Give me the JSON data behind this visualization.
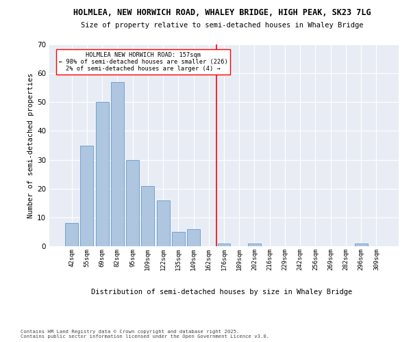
{
  "title": "HOLMLEA, NEW HORWICH ROAD, WHALEY BRIDGE, HIGH PEAK, SK23 7LG",
  "subtitle": "Size of property relative to semi-detached houses in Whaley Bridge",
  "xlabel": "Distribution of semi-detached houses by size in Whaley Bridge",
  "ylabel": "Number of semi-detached properties",
  "bar_labels": [
    "42sqm",
    "55sqm",
    "69sqm",
    "82sqm",
    "95sqm",
    "109sqm",
    "122sqm",
    "135sqm",
    "149sqm",
    "162sqm",
    "176sqm",
    "189sqm",
    "202sqm",
    "216sqm",
    "229sqm",
    "242sqm",
    "256sqm",
    "269sqm",
    "282sqm",
    "296sqm",
    "309sqm"
  ],
  "bar_values": [
    8,
    35,
    50,
    57,
    30,
    21,
    16,
    5,
    6,
    0,
    1,
    0,
    1,
    0,
    0,
    0,
    0,
    0,
    0,
    1,
    0
  ],
  "bar_color": "#aec6e0",
  "bar_edge_color": "#6699cc",
  "bg_color": "#e8edf5",
  "grid_color": "#ffffff",
  "vline_x": 9.5,
  "annotation_line1": "HOLMLEA NEW HORWICH ROAD: 157sqm",
  "annotation_line2": "← 98% of semi-detached houses are smaller (226)",
  "annotation_line3": "2% of semi-detached houses are larger (4) →",
  "footer1": "Contains HM Land Registry data © Crown copyright and database right 2025.",
  "footer2": "Contains public sector information licensed under the Open Government Licence v3.0.",
  "ylim": [
    0,
    70
  ],
  "yticks": [
    0,
    10,
    20,
    30,
    40,
    50,
    60,
    70
  ]
}
